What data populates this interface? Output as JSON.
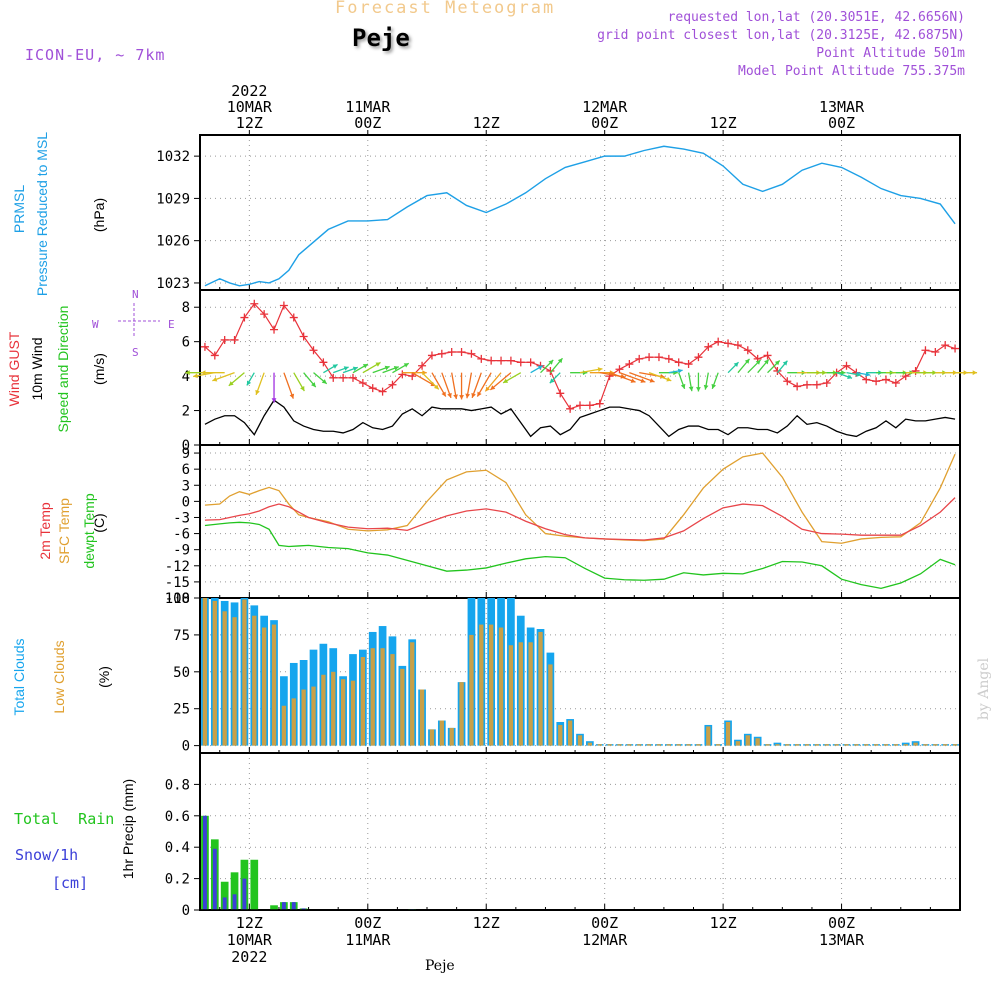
{
  "header": {
    "title": "Forecast Meteogram",
    "location": "Peje",
    "model": "ICON-EU, ~ 7km",
    "requested": "requested lon,lat (20.3051E, 42.6656N)",
    "gridpoint": "grid point closest lon,lat (20.3125E, 42.6875N)",
    "point_alt": "Point Altitude 501m",
    "model_alt": "Model Point Altitude 755.375m",
    "credit": "by Angel",
    "footer_location": "Peje"
  },
  "colors": {
    "pressure": "#1ea0e6",
    "gust": "#e8323a",
    "wind": "#000000",
    "temp2m": "#e8464a",
    "sfc": "#e0a030",
    "dew": "#22c41e",
    "total_clouds": "#15a5ee",
    "low_clouds": "#c8a048",
    "rain": "#22c41e",
    "snow": "#3c40d8",
    "title_color": "#f2c98c",
    "meta": "#a050d8",
    "compass": "#a050d8"
  },
  "time_axis": {
    "top": [
      {
        "t": 0,
        "lines": [
          "2022",
          "10MAR",
          "12Z"
        ]
      },
      {
        "t": 12,
        "lines": [
          "11MAR",
          "00Z"
        ]
      },
      {
        "t": 24,
        "lines": [
          "12Z"
        ]
      },
      {
        "t": 36,
        "lines": [
          "12MAR",
          "00Z"
        ]
      },
      {
        "t": 48,
        "lines": [
          "12Z"
        ]
      },
      {
        "t": 60,
        "lines": [
          "13MAR",
          "00Z"
        ]
      }
    ],
    "bottom": [
      {
        "t": 0,
        "lines": [
          "12Z",
          "10MAR",
          "2022"
        ]
      },
      {
        "t": 12,
        "lines": [
          "00Z",
          "11MAR"
        ]
      },
      {
        "t": 24,
        "lines": [
          "12Z"
        ]
      },
      {
        "t": 36,
        "lines": [
          "00Z",
          "12MAR"
        ]
      },
      {
        "t": 48,
        "lines": [
          "12Z"
        ]
      },
      {
        "t": 60,
        "lines": [
          "00Z",
          "13MAR"
        ]
      }
    ]
  },
  "panels": {
    "pressure": {
      "labels": [
        "PRMSL",
        "Pressure Reduced to MSL",
        "(hPa)"
      ],
      "ticks": [
        "1023",
        "1026",
        "1029",
        "1032"
      ]
    },
    "wind": {
      "labels": [
        "Wind GUST",
        "10m Wind",
        "Speed and Direction",
        "(m/s)"
      ],
      "ticks": [
        "0",
        "2",
        "4",
        "6",
        "8"
      ],
      "compass": {
        "n": "N",
        "s": "S",
        "w": "W",
        "e": "E"
      }
    },
    "temp": {
      "labels": [
        "2m Temp",
        "SFC Temp",
        "dewpt Temp",
        "(C)"
      ],
      "ticks": [
        "-18",
        "-15",
        "-12",
        "-9",
        "-6",
        "-3",
        "0",
        "3",
        "6",
        "9"
      ]
    },
    "clouds": {
      "labels": [
        "Total Clouds",
        "Low Clouds",
        "(%)"
      ],
      "ticks": [
        "0",
        "25",
        "50",
        "75",
        "100"
      ]
    },
    "precip": {
      "labels": [
        "Total Rain",
        "Snow/1h",
        "[cm]",
        "1hr Precip (mm)"
      ],
      "ticks": [
        "0",
        "0.2",
        "0.4",
        "0.6",
        "0.8"
      ]
    }
  },
  "chart_data": [
    {
      "type": "line",
      "title": "PRMSL Pressure Reduced to MSL",
      "ylabel": "(hPa)",
      "ylim": [
        1022.5,
        1033.5
      ],
      "x_hours_from_2022-03-10T12Z": [
        -4.5,
        -3,
        -2,
        -1,
        0,
        1,
        2,
        3,
        4,
        5,
        6,
        8,
        10,
        12,
        14,
        16,
        18,
        20,
        22,
        24,
        26,
        28,
        30,
        32,
        34,
        36,
        38,
        40,
        42,
        44,
        46,
        48,
        50,
        52,
        54,
        56,
        58,
        60,
        62,
        64,
        66,
        68,
        70,
        71.5
      ],
      "series": [
        {
          "name": "PRMSL",
          "values": [
            1022.8,
            1023.3,
            1023.0,
            1022.8,
            1022.9,
            1023.1,
            1023.0,
            1023.3,
            1023.9,
            1025.0,
            1025.6,
            1026.8,
            1027.4,
            1027.4,
            1027.5,
            1028.4,
            1029.2,
            1029.4,
            1028.5,
            1028.0,
            1028.6,
            1029.4,
            1030.4,
            1031.2,
            1031.6,
            1032.0,
            1032.0,
            1032.4,
            1032.7,
            1032.5,
            1032.2,
            1031.3,
            1030.0,
            1029.5,
            1030.0,
            1031.0,
            1031.5,
            1031.2,
            1030.5,
            1029.7,
            1029.2,
            1029.0,
            1028.6,
            1027.2
          ]
        }
      ]
    },
    {
      "type": "line",
      "title": "Wind GUST / 10m Wind Speed and Direction",
      "ylabel": "(m/s)",
      "ylim": [
        0,
        9
      ],
      "x_hours_from_2022-03-10T12Z": [
        -4.5,
        -3.5,
        -2.5,
        -1.5,
        -0.5,
        0.5,
        1.5,
        2.5,
        3.5,
        4.5,
        5.5,
        6.5,
        7.5,
        8.5,
        9.5,
        10.5,
        11.5,
        12.5,
        13.5,
        14.5,
        15.5,
        16.5,
        17.5,
        18.5,
        19.5,
        20.5,
        21.5,
        22.5,
        23.5,
        24.5,
        25.5,
        26.5,
        27.5,
        28.5,
        29.5,
        30.5,
        31.5,
        32.5,
        33.5,
        34.5,
        35.5,
        36.5,
        37.5,
        38.5,
        39.5,
        40.5,
        41.5,
        42.5,
        43.5,
        44.5,
        45.5,
        46.5,
        47.5,
        48.5,
        49.5,
        50.5,
        51.5,
        52.5,
        53.5,
        54.5,
        55.5,
        56.5,
        57.5,
        58.5,
        59.5,
        60.5,
        61.5,
        62.5,
        63.5,
        64.5,
        65.5,
        66.5,
        67.5,
        68.5,
        69.5,
        70.5,
        71.5
      ],
      "series": [
        {
          "name": "Wind GUST",
          "values": [
            5.7,
            5.2,
            6.1,
            6.1,
            7.4,
            8.2,
            7.6,
            6.7,
            8.1,
            7.4,
            6.3,
            5.5,
            4.8,
            3.9,
            3.9,
            3.9,
            3.6,
            3.3,
            3.1,
            3.5,
            4.1,
            4.0,
            4.6,
            5.2,
            5.3,
            5.4,
            5.4,
            5.3,
            5.0,
            4.9,
            4.9,
            4.9,
            4.8,
            4.8,
            4.6,
            4.3,
            3.0,
            2.1,
            2.3,
            2.3,
            2.4,
            4.0,
            4.4,
            4.7,
            5.0,
            5.1,
            5.1,
            5.0,
            4.8,
            4.7,
            5.1,
            5.7,
            6.0,
            5.9,
            5.8,
            5.5,
            5.0,
            5.2,
            4.3,
            3.7,
            3.4,
            3.5,
            3.5,
            3.6,
            4.2,
            4.6,
            4.2,
            3.8,
            3.7,
            3.8,
            3.6,
            4.0,
            4.3,
            5.5,
            5.4,
            5.8,
            5.6
          ]
        },
        {
          "name": "10m Wind",
          "values": [
            1.2,
            1.5,
            1.7,
            1.7,
            1.3,
            0.6,
            1.7,
            2.6,
            2.2,
            1.4,
            1.1,
            0.9,
            0.8,
            0.8,
            0.7,
            0.9,
            1.3,
            1.0,
            0.9,
            1.1,
            1.8,
            2.1,
            1.7,
            2.2,
            2.1,
            2.1,
            2.1,
            2.0,
            2.1,
            2.2,
            1.8,
            2.1,
            1.3,
            0.5,
            1.0,
            1.1,
            0.6,
            0.9,
            1.6,
            1.8,
            2.0,
            2.2,
            2.2,
            2.1,
            2.0,
            1.7,
            1.1,
            0.5,
            0.9,
            1.1,
            1.1,
            0.9,
            0.9,
            0.6,
            1.0,
            1.0,
            0.9,
            0.9,
            0.7,
            1.1,
            1.7,
            1.2,
            1.3,
            1.1,
            0.8,
            0.6,
            0.5,
            0.8,
            1.0,
            1.4,
            1.0,
            1.5,
            1.4,
            1.4,
            1.5,
            1.6,
            1.5
          ]
        }
      ]
    },
    {
      "type": "line",
      "title": "2m Temp / SFC Temp / dewpt Temp",
      "ylabel": "(C)",
      "ylim": [
        -18,
        10
      ],
      "x_hours_from_2022-03-10T12Z": [
        -4.5,
        -3,
        -2,
        -1,
        0,
        1,
        2,
        3,
        4,
        5,
        6,
        8,
        10,
        12,
        14,
        16,
        18,
        20,
        22,
        24,
        26,
        28,
        30,
        32,
        34,
        36,
        38,
        40,
        42,
        44,
        46,
        48,
        50,
        52,
        54,
        56,
        58,
        60,
        62,
        64,
        66,
        68,
        70,
        71.5
      ],
      "series": [
        {
          "name": "2m Temp",
          "values": [
            -3.5,
            -3.4,
            -3.0,
            -2.6,
            -2.3,
            -1.8,
            -1.0,
            -0.5,
            -1.0,
            -2.0,
            -3.0,
            -4.0,
            -4.8,
            -5.1,
            -5.0,
            -5.4,
            -4.0,
            -2.7,
            -1.8,
            -1.4,
            -2.0,
            -3.7,
            -5.1,
            -6.2,
            -6.8,
            -7.0,
            -7.1,
            -7.2,
            -6.8,
            -5.5,
            -3.2,
            -1.2,
            -0.5,
            -0.8,
            -2.8,
            -5.2,
            -6.0,
            -6.1,
            -6.3,
            -6.3,
            -6.3,
            -4.5,
            -2.0,
            0.7
          ]
        },
        {
          "name": "SFC Temp",
          "values": [
            -0.7,
            -0.5,
            1.0,
            1.8,
            1.3,
            2.0,
            2.6,
            2.0,
            -0.5,
            -2.5,
            -3.0,
            -3.8,
            -5.2,
            -5.5,
            -5.3,
            -4.5,
            0.0,
            4.0,
            5.5,
            5.8,
            3.5,
            -2.5,
            -6.0,
            -6.5,
            -6.8,
            -7.0,
            -7.2,
            -7.3,
            -7.0,
            -2.5,
            2.5,
            6.0,
            8.3,
            9.0,
            4.5,
            -2.0,
            -7.5,
            -7.8,
            -7.0,
            -6.7,
            -6.6,
            -4.0,
            2.5,
            8.8
          ]
        },
        {
          "name": "dewpt Temp",
          "values": [
            -4.5,
            -4.2,
            -4.0,
            -3.9,
            -4.0,
            -4.3,
            -5.2,
            -8.2,
            -8.4,
            -8.3,
            -8.2,
            -8.6,
            -8.8,
            -9.6,
            -10.0,
            -11.0,
            -12.0,
            -13.0,
            -12.8,
            -12.4,
            -11.5,
            -10.7,
            -10.3,
            -10.5,
            -12.5,
            -14.3,
            -14.6,
            -14.7,
            -14.5,
            -13.3,
            -13.7,
            -13.4,
            -13.5,
            -12.5,
            -11.2,
            -11.3,
            -12.0,
            -14.5,
            -15.5,
            -16.2,
            -15.2,
            -13.5,
            -10.8,
            -11.8
          ]
        }
      ]
    },
    {
      "type": "bar",
      "title": "Total Clouds / Low Clouds",
      "ylabel": "(%)",
      "ylim": [
        0,
        100
      ],
      "x_hours_from_2022-03-10T12Z": [
        -4.5,
        -3.5,
        -2.5,
        -1.5,
        -0.5,
        0.5,
        1.5,
        2.5,
        3.5,
        4.5,
        5.5,
        6.5,
        7.5,
        8.5,
        9.5,
        10.5,
        11.5,
        12.5,
        13.5,
        14.5,
        15.5,
        16.5,
        17.5,
        18.5,
        19.5,
        20.5,
        21.5,
        22.5,
        23.5,
        24.5,
        25.5,
        26.5,
        27.5,
        28.5,
        29.5,
        30.5,
        31.5,
        32.5,
        33.5,
        34.5,
        35.5,
        36.5,
        37.5,
        38.5,
        39.5,
        40.5,
        41.5,
        42.5,
        43.5,
        44.5,
        45.5,
        46.5,
        47.5,
        48.5,
        49.5,
        50.5,
        51.5,
        52.5,
        53.5,
        54.5,
        55.5,
        56.5,
        57.5,
        58.5,
        59.5,
        60.5,
        61.5,
        62.5,
        63.5,
        64.5,
        65.5,
        66.5,
        67.5,
        68.5,
        69.5,
        70.5,
        71.5
      ],
      "series": [
        {
          "name": "Total Clouds",
          "values": [
            100,
            100,
            98,
            97,
            100,
            95,
            88,
            85,
            47,
            56,
            58,
            65,
            69,
            66,
            47,
            62,
            65,
            77,
            81,
            74,
            54,
            72,
            38,
            11,
            17,
            12,
            43,
            100,
            100,
            100,
            100,
            100,
            88,
            80,
            79,
            63,
            16,
            18,
            8,
            3,
            1,
            1,
            1,
            1,
            1,
            1,
            1,
            1,
            1,
            1,
            1,
            14,
            1,
            17,
            4,
            8,
            6,
            1,
            2,
            1,
            1,
            1,
            1,
            1,
            1,
            1,
            1,
            1,
            1,
            1,
            1,
            2,
            3,
            1,
            1,
            1,
            1
          ]
        },
        {
          "name": "Low Clouds",
          "values": [
            100,
            98,
            91,
            87,
            99,
            88,
            80,
            82,
            27,
            32,
            38,
            40,
            48,
            50,
            45,
            44,
            60,
            66,
            66,
            62,
            52,
            70,
            38,
            11,
            17,
            12,
            43,
            75,
            82,
            82,
            80,
            68,
            70,
            70,
            77,
            55,
            14,
            17,
            7,
            2,
            1,
            1,
            1,
            1,
            1,
            1,
            1,
            1,
            1,
            1,
            1,
            13,
            1,
            16,
            3,
            7,
            5,
            1,
            1,
            1,
            1,
            1,
            1,
            1,
            1,
            1,
            1,
            1,
            1,
            1,
            1,
            1,
            2,
            1,
            1,
            1,
            1
          ]
        }
      ]
    },
    {
      "type": "bar",
      "title": "Total Rain / Snow/1h [cm]",
      "ylabel": "1hr Precip (mm)",
      "ylim": [
        0,
        1.0
      ],
      "x_hours_from_2022-03-10T12Z": [
        -4.5,
        -3.5,
        -2.5,
        -1.5,
        -0.5,
        0.5,
        1.5,
        2.5,
        3.5,
        4.5,
        5.5,
        6.5,
        7.5,
        8.5,
        9.5,
        10.5,
        11.5,
        12.5,
        13.5,
        14.5,
        15.5,
        16.5,
        17.5,
        18.5,
        19.5,
        20.5,
        21.5,
        22.5,
        23.5,
        24.5
      ],
      "series": [
        {
          "name": "Total Rain",
          "values": [
            0.6,
            0.45,
            0.18,
            0.24,
            0.32,
            0.32,
            0.0,
            0.03,
            0.05,
            0.05,
            0.01,
            0.0,
            0.0,
            0.0,
            0.0,
            0.0,
            0.0,
            0.0,
            0.0,
            0.0,
            0.0,
            0.005,
            0.0,
            0.0,
            0.0,
            0.0,
            0.0,
            0.0,
            0.0,
            0.0
          ]
        },
        {
          "name": "Snow/1h",
          "values": [
            0.6,
            0.39,
            0.08,
            0.1,
            0.2,
            0.0,
            0.0,
            0.0,
            0.05,
            0.05,
            0.01,
            0.0,
            0.0,
            0.0,
            0.0,
            0.0,
            0.0,
            0.0,
            0.0,
            0.0,
            0.0,
            0.005,
            0.0,
            0.0,
            0.0,
            0.0,
            0.0,
            0.0,
            0.0,
            0.0
          ]
        }
      ]
    }
  ],
  "wind_arrows": {
    "note_x_hours": "shared with wind panel x",
    "dirs_deg_to": [
      270,
      260,
      270,
      250,
      230,
      210,
      200,
      180,
      160,
      150,
      140,
      130,
      60,
      70,
      70,
      60,
      60,
      70,
      70,
      60,
      90,
      120,
      135,
      150,
      160,
      170,
      180,
      190,
      200,
      210,
      220,
      230,
      240,
      60,
      45,
      40,
      225,
      90,
      80,
      90,
      100,
      110,
      110,
      110,
      100,
      110,
      90,
      80,
      160,
      170,
      180,
      190,
      200,
      45,
      40,
      45,
      40,
      45,
      40,
      90,
      90,
      90,
      90,
      90,
      110,
      100,
      100,
      90,
      90,
      90,
      90,
      90,
      90,
      90,
      90,
      90,
      90
    ]
  }
}
